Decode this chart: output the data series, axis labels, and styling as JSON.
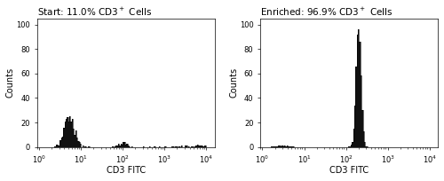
{
  "title_left": "Start: 11.0% CD3",
  "title_right": "Enriched: 96.9% CD3",
  "xlabel": "CD3 FITC",
  "ylabel": "Counts",
  "xlim_log": [
    -0.05,
    4.2
  ],
  "ylim": [
    0,
    105
  ],
  "yticks": [
    0,
    20,
    40,
    60,
    80,
    100
  ],
  "hist_color": "#111111",
  "title_fontsize": 7.5,
  "label_fontsize": 7,
  "tick_fontsize": 6
}
